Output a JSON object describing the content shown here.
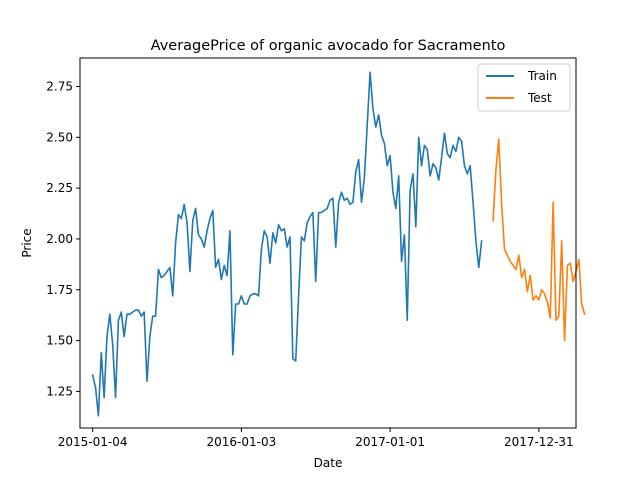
{
  "chart_data": {
    "type": "line",
    "title": "AveragePrice of organic avocado for Sacramento",
    "xlabel": "Date",
    "ylabel": "Price",
    "xlim": [
      "2014-12-04",
      "2018-04-01"
    ],
    "ylim": [
      1.07,
      2.89
    ],
    "x_ticks": [
      {
        "date": "2015-01-04",
        "label": "2015-01-04"
      },
      {
        "date": "2016-01-03",
        "label": "2016-01-03"
      },
      {
        "date": "2017-01-01",
        "label": "2017-01-01"
      },
      {
        "date": "2017-12-31",
        "label": "2017-12-31"
      }
    ],
    "y_ticks": [
      {
        "value": 1.25,
        "label": "1.25"
      },
      {
        "value": 1.5,
        "label": "1.50"
      },
      {
        "value": 1.75,
        "label": "1.75"
      },
      {
        "value": 2.0,
        "label": "2.00"
      },
      {
        "value": 2.25,
        "label": "2.25"
      },
      {
        "value": 2.5,
        "label": "2.50"
      },
      {
        "value": 2.75,
        "label": "2.75"
      }
    ],
    "legend_position": "top-right",
    "series": [
      {
        "name": "Train",
        "color": "#1f77b4",
        "start_date": "2015-01-04",
        "interval_days": 7,
        "values": [
          1.33,
          1.27,
          1.13,
          1.44,
          1.22,
          1.52,
          1.63,
          1.48,
          1.22,
          1.6,
          1.64,
          1.52,
          1.63,
          1.63,
          1.64,
          1.65,
          1.65,
          1.62,
          1.64,
          1.3,
          1.52,
          1.62,
          1.62,
          1.85,
          1.81,
          1.82,
          1.84,
          1.86,
          1.72,
          1.98,
          2.12,
          2.1,
          2.17,
          2.08,
          1.84,
          2.09,
          2.15,
          2.02,
          2.0,
          1.96,
          2.04,
          2.1,
          2.14,
          1.86,
          1.9,
          1.8,
          1.87,
          1.82,
          2.04,
          1.43,
          1.68,
          1.68,
          1.72,
          1.68,
          1.68,
          1.72,
          1.73,
          1.73,
          1.72,
          1.95,
          2.04,
          2.01,
          1.88,
          2.03,
          1.98,
          2.07,
          2.04,
          2.05,
          1.96,
          2.01,
          1.41,
          1.4,
          1.72,
          2.01,
          1.99,
          2.08,
          2.11,
          2.13,
          1.79,
          2.13,
          2.13,
          2.14,
          2.15,
          2.19,
          2.2,
          1.96,
          2.18,
          2.23,
          2.19,
          2.2,
          2.17,
          2.18,
          2.33,
          2.39,
          2.18,
          2.3,
          2.56,
          2.82,
          2.64,
          2.55,
          2.61,
          2.51,
          2.47,
          2.36,
          2.41,
          2.23,
          2.15,
          2.31,
          1.89,
          2.02,
          1.6,
          2.24,
          2.32,
          2.06,
          2.5,
          2.36,
          2.46,
          2.44,
          2.31,
          2.37,
          2.35,
          2.29,
          2.4,
          2.52,
          2.42,
          2.4,
          2.46,
          2.43,
          2.5,
          2.48,
          2.36,
          2.32,
          2.36,
          2.18,
          1.99,
          1.86,
          1.99
        ]
      },
      {
        "name": "Test",
        "color": "#ff7f0e",
        "start_date": "2017-09-10",
        "interval_days": 7,
        "values": [
          2.09,
          2.34,
          2.49,
          2.17,
          1.95,
          1.92,
          1.89,
          1.87,
          1.85,
          1.92,
          1.81,
          1.85,
          1.74,
          1.82,
          1.7,
          1.72,
          1.7,
          1.75,
          1.73,
          1.69,
          1.61,
          2.18,
          1.6,
          1.62,
          1.99,
          1.5,
          1.87,
          1.88,
          1.79,
          1.84,
          1.9,
          1.68,
          1.63
        ]
      }
    ]
  }
}
